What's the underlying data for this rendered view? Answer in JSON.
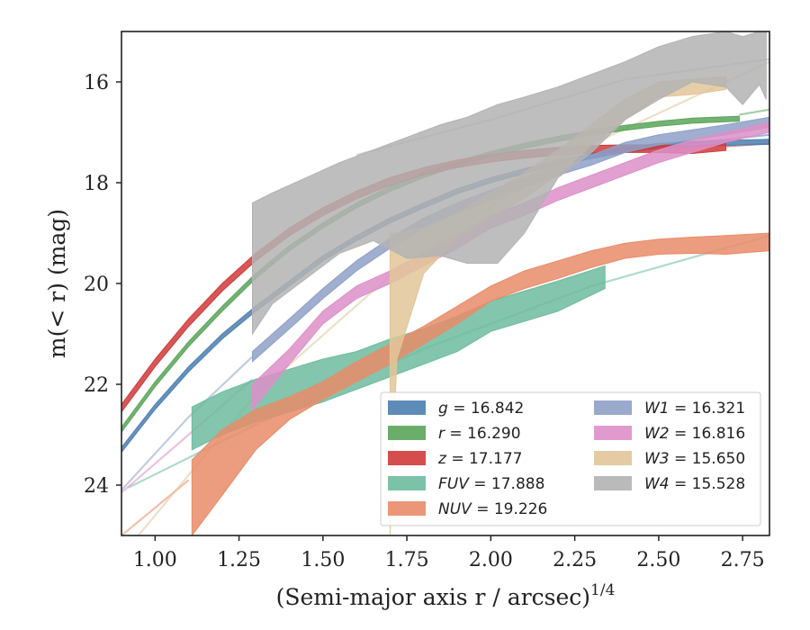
{
  "chart_data": {
    "type": "line",
    "xlabel": "(Semi-major axis r / arcsec)",
    "xlabel_sup": "1/4",
    "ylabel": "m(< r) (mag)",
    "xlim": [
      0.9,
      2.83
    ],
    "ylim": [
      25.0,
      15.0
    ],
    "y_inverted": true,
    "xticks": [
      1.0,
      1.25,
      1.5,
      1.75,
      2.0,
      2.25,
      2.5,
      2.75
    ],
    "xtick_labels": [
      "1.00",
      "1.25",
      "1.50",
      "1.75",
      "2.00",
      "2.25",
      "2.50",
      "2.75"
    ],
    "yticks": [
      16,
      18,
      20,
      22,
      24
    ],
    "ytick_labels": [
      "16",
      "18",
      "20",
      "22",
      "24"
    ],
    "legend_position": "lower-right",
    "series": [
      {
        "name": "g = 16.842",
        "legend_main": "g",
        "legend_value": "= 16.842",
        "color": "#4c7fb0",
        "style": "band",
        "x": [
          0.9,
          1.0,
          1.1,
          1.2,
          1.3,
          1.4,
          1.5,
          1.6,
          1.7,
          1.8,
          1.9,
          2.0,
          2.1,
          2.2,
          2.3,
          2.4,
          2.5,
          2.6,
          2.7,
          2.83
        ],
        "lower": [
          23.25,
          22.4,
          21.65,
          21.0,
          20.45,
          19.95,
          19.45,
          19.05,
          18.7,
          18.4,
          18.12,
          17.9,
          17.72,
          17.56,
          17.42,
          17.3,
          17.22,
          17.18,
          17.16,
          17.14
        ],
        "upper": [
          23.35,
          22.5,
          21.75,
          21.1,
          20.55,
          20.05,
          19.55,
          19.15,
          18.8,
          18.5,
          18.22,
          18.0,
          17.82,
          17.66,
          17.52,
          17.4,
          17.32,
          17.28,
          17.26,
          17.24
        ],
        "extrap": {
          "x": [
            2.0,
            2.4,
            2.83
          ],
          "y": [
            17.95,
            17.35,
            17.05
          ]
        }
      },
      {
        "name": "r = 16.290",
        "legend_main": "r",
        "legend_value": "= 16.290",
        "color": "#5aa55a",
        "style": "band",
        "x": [
          0.9,
          1.0,
          1.1,
          1.2,
          1.3,
          1.4,
          1.5,
          1.6,
          1.7,
          1.8,
          1.9,
          2.0,
          2.1,
          2.2,
          2.3,
          2.4,
          2.5,
          2.6,
          2.74
        ],
        "lower": [
          22.85,
          21.95,
          21.15,
          20.45,
          19.8,
          19.25,
          18.8,
          18.4,
          18.07,
          17.8,
          17.57,
          17.38,
          17.22,
          17.08,
          16.96,
          16.86,
          16.78,
          16.72,
          16.68
        ],
        "upper": [
          22.95,
          22.05,
          21.25,
          20.55,
          19.9,
          19.35,
          18.9,
          18.5,
          18.17,
          17.9,
          17.67,
          17.48,
          17.32,
          17.18,
          17.06,
          16.96,
          16.88,
          16.82,
          16.78
        ],
        "extrap": {
          "x": [
            2.74,
            2.83
          ],
          "y": [
            16.65,
            16.55
          ]
        }
      },
      {
        "name": "z = 17.177",
        "legend_main": "z",
        "legend_value": "= 17.177",
        "color": "#d03a3a",
        "style": "band",
        "x": [
          0.9,
          1.0,
          1.1,
          1.2,
          1.3,
          1.4,
          1.5,
          1.6,
          1.7,
          1.8,
          1.9,
          2.0,
          2.1,
          2.2,
          2.3,
          2.4,
          2.5,
          2.6,
          2.7
        ],
        "lower": [
          22.4,
          21.5,
          20.7,
          20.0,
          19.4,
          18.9,
          18.5,
          18.17,
          17.9,
          17.7,
          17.55,
          17.44,
          17.36,
          17.3,
          17.26,
          17.25,
          17.25,
          17.28,
          17.22
        ],
        "upper": [
          22.55,
          21.65,
          20.85,
          20.15,
          19.55,
          19.05,
          18.65,
          18.32,
          18.05,
          17.85,
          17.7,
          17.59,
          17.51,
          17.45,
          17.41,
          17.4,
          17.4,
          17.42,
          17.36
        ],
        "extrap": {
          "x": [
            2.7,
            2.83
          ],
          "y": [
            17.28,
            17.22
          ]
        }
      },
      {
        "name": "FUV = 17.888",
        "legend_main": "FUV",
        "legend_value": "= 17.888",
        "color": "#6dbb9f",
        "style": "band",
        "x": [
          1.11,
          1.2,
          1.3,
          1.4,
          1.5,
          1.6,
          1.7,
          1.8,
          1.9,
          2.0,
          2.1,
          2.2,
          2.34
        ],
        "lower": [
          22.45,
          22.15,
          21.9,
          21.7,
          21.5,
          21.35,
          21.1,
          20.9,
          20.65,
          20.35,
          20.15,
          19.95,
          19.65
        ],
        "upper": [
          23.3,
          23.0,
          22.75,
          22.55,
          22.35,
          22.1,
          21.85,
          21.6,
          21.35,
          20.95,
          20.75,
          20.55,
          20.1
        ],
        "extrap": {
          "x": [
            0.92,
            1.3,
            1.8,
            2.3,
            2.83
          ],
          "y": [
            24.05,
            22.8,
            21.3,
            20.05,
            19.05
          ]
        }
      },
      {
        "name": "NUV = 19.226",
        "legend_main": "NUV",
        "legend_value": "= 19.226",
        "color": "#e98c68",
        "style": "band",
        "x": [
          1.11,
          1.2,
          1.3,
          1.4,
          1.5,
          1.6,
          1.7,
          1.8,
          1.9,
          2.0,
          2.1,
          2.2,
          2.3,
          2.4,
          2.5,
          2.6,
          2.7,
          2.83
        ],
        "lower": [
          23.5,
          22.9,
          22.5,
          22.25,
          21.95,
          21.55,
          21.2,
          20.85,
          20.45,
          20.05,
          19.75,
          19.55,
          19.35,
          19.2,
          19.12,
          19.08,
          19.05,
          19.0
        ],
        "upper": [
          25.0,
          24.2,
          23.3,
          22.7,
          22.3,
          21.95,
          21.6,
          21.2,
          20.8,
          20.35,
          20.1,
          19.9,
          19.68,
          19.5,
          19.42,
          19.4,
          19.42,
          19.35
        ],
        "extrap": {
          "x": [
            0.9,
            1.1
          ],
          "y": [
            25.0,
            23.9
          ]
        }
      },
      {
        "name": "W1 = 16.321",
        "legend_main": "W1",
        "legend_value": "= 16.321",
        "color": "#8fa0c7",
        "style": "band",
        "x": [
          1.29,
          1.4,
          1.5,
          1.6,
          1.7,
          1.8,
          1.9,
          2.0,
          2.1,
          2.2,
          2.3,
          2.4,
          2.5,
          2.6,
          2.7,
          2.83
        ],
        "lower": [
          21.35,
          20.7,
          20.1,
          19.55,
          19.1,
          18.7,
          18.4,
          18.15,
          17.9,
          17.65,
          17.45,
          17.2,
          17.05,
          16.95,
          16.85,
          16.7
        ],
        "upper": [
          21.55,
          20.9,
          20.3,
          19.75,
          19.3,
          18.9,
          18.6,
          18.35,
          18.1,
          17.85,
          17.65,
          17.4,
          17.25,
          17.15,
          17.05,
          16.9
        ],
        "extrap": {
          "x": [
            0.9,
            1.1,
            1.29
          ],
          "y": [
            24.1,
            22.65,
            21.45
          ]
        }
      },
      {
        "name": "W2 = 16.816",
        "legend_main": "W2",
        "legend_value": "= 16.816",
        "color": "#dd8fc8",
        "style": "band",
        "x": [
          1.29,
          1.4,
          1.5,
          1.6,
          1.7,
          1.8,
          1.9,
          2.0,
          2.1,
          2.2,
          2.3,
          2.4,
          2.5,
          2.6,
          2.7,
          2.83
        ],
        "lower": [
          22.0,
          21.3,
          20.55,
          20.05,
          19.75,
          19.4,
          19.05,
          18.65,
          18.4,
          18.1,
          17.85,
          17.6,
          17.35,
          17.15,
          17.0,
          16.8
        ],
        "upper": [
          22.5,
          21.6,
          20.8,
          20.3,
          20.0,
          19.65,
          19.3,
          18.9,
          18.65,
          18.35,
          18.1,
          17.85,
          17.6,
          17.4,
          17.2,
          17.0
        ],
        "extrap": {
          "x": [
            0.9,
            1.1,
            1.29
          ],
          "y": [
            24.15,
            23.0,
            21.9
          ]
        }
      },
      {
        "name": "W3 = 15.650",
        "legend_main": "W3",
        "legend_value": "= 15.650",
        "color": "#e2c599",
        "style": "band",
        "x": [
          1.7,
          1.72,
          1.8,
          1.9,
          2.0,
          2.1,
          2.2,
          2.3,
          2.4,
          2.5,
          2.6,
          2.7
        ],
        "lower": [
          19.0,
          19.0,
          18.9,
          18.6,
          18.2,
          17.8,
          17.35,
          16.85,
          16.35,
          16.0,
          15.95,
          15.9
        ],
        "upper": [
          25.0,
          21.5,
          19.8,
          19.1,
          18.7,
          18.3,
          17.85,
          17.25,
          16.75,
          16.3,
          16.25,
          16.15
        ],
        "extrap": {
          "x": [
            0.95,
            1.3,
            1.7,
            2.2,
            2.83
          ],
          "y": [
            25.0,
            22.2,
            19.85,
            17.55,
            15.6
          ]
        }
      },
      {
        "name": "W4 = 15.528",
        "legend_main": "W4",
        "legend_value": "= 15.528",
        "color": "#b3b3b3",
        "style": "band",
        "x": [
          1.29,
          1.35,
          1.45,
          1.55,
          1.65,
          1.75,
          1.85,
          1.93,
          2.02,
          2.1,
          2.2,
          2.3,
          2.4,
          2.5,
          2.6,
          2.7,
          2.75,
          2.8,
          2.82
        ],
        "lower": [
          18.4,
          18.2,
          17.9,
          17.6,
          17.35,
          17.1,
          16.85,
          16.7,
          16.45,
          16.3,
          16.1,
          15.85,
          15.6,
          15.3,
          15.1,
          15.0,
          15.1,
          15.0,
          15.0
        ],
        "upper": [
          21.0,
          20.4,
          19.9,
          19.4,
          19.15,
          19.5,
          19.45,
          19.6,
          19.6,
          19.0,
          17.9,
          17.4,
          16.75,
          16.35,
          16.0,
          16.1,
          16.45,
          16.05,
          16.35
        ],
        "extrap": {
          "x": [
            1.6,
            2.0,
            2.4,
            2.83
          ],
          "y": [
            17.45,
            16.75,
            15.95,
            15.55
          ]
        }
      }
    ]
  }
}
